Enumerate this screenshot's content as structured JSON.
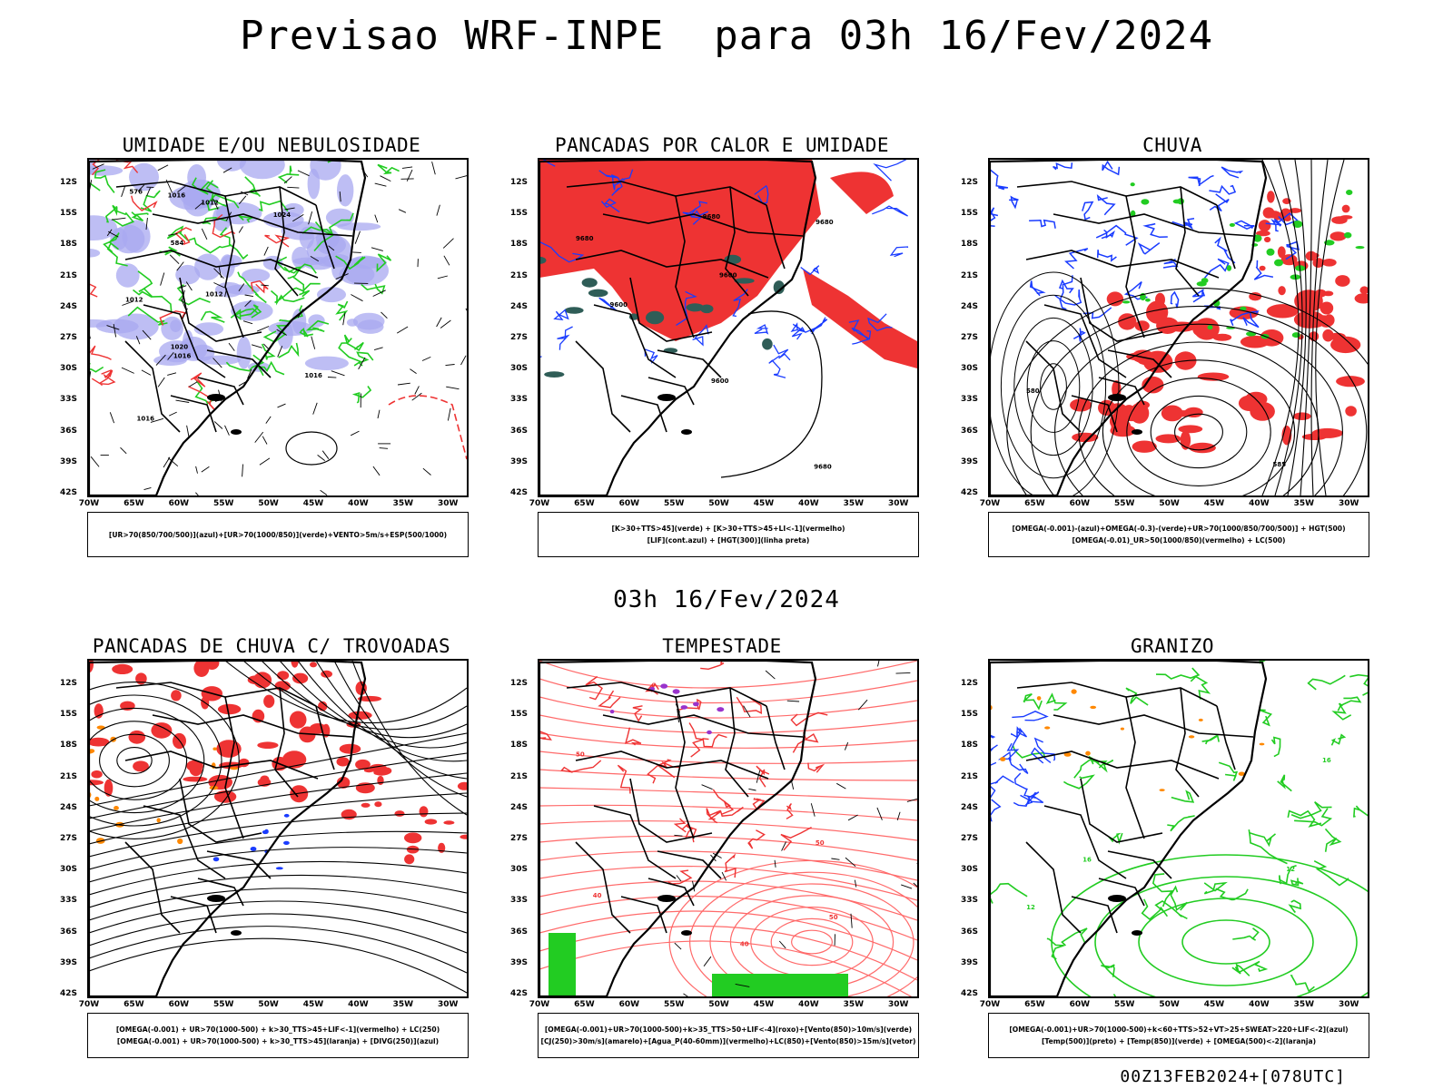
{
  "header": {
    "title": "Previsao WRF-INPE  para 03h 16/Fev/2024",
    "mid_title": "03h 16/Fev/2024",
    "stamp": "00Z13FEB2024+[078UTC]"
  },
  "axes": {
    "lat_ticks": [
      "12S",
      "15S",
      "18S",
      "21S",
      "24S",
      "27S",
      "30S",
      "33S",
      "36S",
      "39S",
      "42S"
    ],
    "lon_ticks": [
      "70W",
      "65W",
      "60W",
      "55W",
      "50W",
      "45W",
      "40W",
      "35W",
      "30W"
    ]
  },
  "colors": {
    "green": "#22cc22",
    "red": "#ee3333",
    "blue": "#1a3cff",
    "lavender": "#a8a8f0",
    "dark_teal": "#2f5d57",
    "salmon": "#ff6a6a",
    "orange": "#ff8800",
    "purple": "#9933cc"
  },
  "panels": [
    {
      "id": "umidade",
      "title": "UMIDADE E/OU NEBULOSIDADE",
      "legend": [
        "[UR>70(850/700/500)](azul)+[UR>70(1000/850)](verde)+VENTO>5m/s+ESP(500/1000)"
      ],
      "contour_labels": [
        "1012",
        "1012",
        "1016",
        "1016",
        "1016",
        "1020",
        "1024",
        "1016",
        "576",
        "584",
        "1012"
      ]
    },
    {
      "id": "pancadas-calor",
      "title": "PANCADAS POR CALOR E UMIDADE",
      "legend": [
        "[K>30+TTS>45](verde) + [K>30+TTS>45+LI<-1](vermelho)",
        "[LIF](cont.azul) + [HGT(300)](linha preta)"
      ],
      "contour_labels": [
        "9680",
        "9680",
        "9680",
        "9680",
        "9600",
        "9600",
        "9600"
      ]
    },
    {
      "id": "chuva",
      "title": "CHUVA",
      "legend": [
        "[OMEGA(-0.001)-(azul)+OMEGA(-0.3)-(verde)+UR>70(1000/850/700/500)] + HGT(500)",
        "[OMEGA(-0.01)_UR>50(1000/850)(vermelho) + LC(500)"
      ],
      "contour_labels": [
        "580",
        "585"
      ]
    },
    {
      "id": "pancadas-trovoadas",
      "title": "PANCADAS DE CHUVA C/ TROVOADAS",
      "legend": [
        "[OMEGA(-0.001) + UR>70(1000-500) + k>30_TTS>45+LIF<-1](vermelho) + LC(250)",
        "[OMEGA(-0.001) + UR>70(1000-500) + k>30_TTS>45](laranja) + [DIVG(250)](azul)"
      ]
    },
    {
      "id": "tempestade",
      "title": "TEMPESTADE",
      "legend": [
        "[OMEGA(-0.001)+UR>70(1000-500)+k>35_TTS>50+LIF<-4](roxo)+[Vento(850)>10m/s](verde)",
        "[CJ(250)>30m/s](amarelo)+[Agua_P(40-60mm)](vermelho)+LC(850)+[Vento(850)>15m/s](vetor)"
      ],
      "contour_labels": [
        "50",
        "50",
        "40",
        "50",
        "40"
      ]
    },
    {
      "id": "granizo",
      "title": "GRANIZO",
      "legend": [
        "[OMEGA(-0.001)+UR>70(1000-500)+k<60+TTS>52+VT>25+SWEAT>220+LIF<-2](azul)",
        "[Temp(500)](preto) + [Temp(850)](verde) + [OMEGA(500)<-2](laranja)"
      ],
      "contour_labels": [
        "12",
        "12",
        "16",
        "16"
      ]
    }
  ]
}
